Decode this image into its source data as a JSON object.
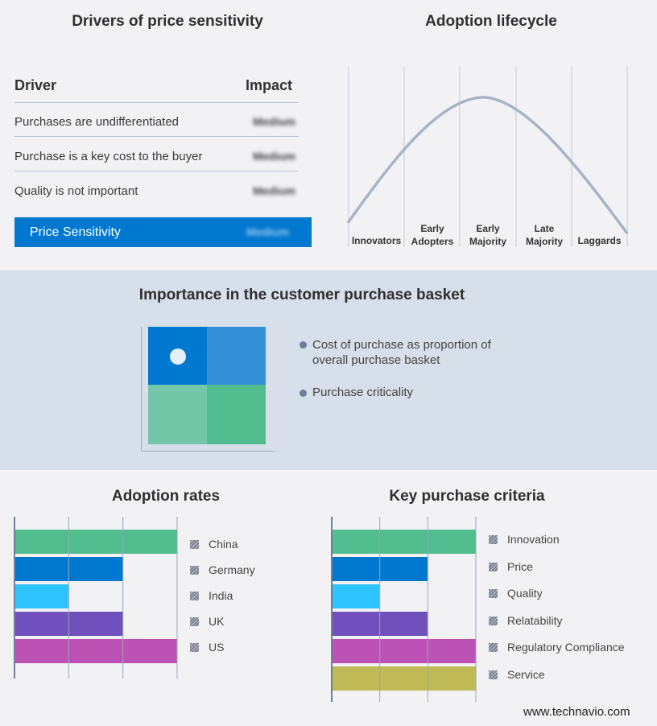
{
  "drivers": {
    "title": "Drivers of price sensitivity",
    "header_driver": "Driver",
    "header_impact": "Impact",
    "rows": [
      {
        "driver": "Purchases are undifferentiated",
        "impact": "Medium"
      },
      {
        "driver": "Purchase is a key cost to the buyer",
        "impact": "Medium"
      },
      {
        "driver": "Quality is not important",
        "impact": "Medium"
      }
    ],
    "summary": {
      "label": "Price Sensitivity",
      "impact": "Medium"
    },
    "accent": "#0078d0"
  },
  "lifecycle": {
    "title": "Adoption lifecycle",
    "stages": [
      "Innovators",
      "Early Adopters",
      "Early Majority",
      "Late Majority",
      "Laggards"
    ]
  },
  "basket": {
    "title": "Importance in the customer purchase basket",
    "legend": [
      "Cost of purchase as proportion of overall purchase basket",
      "Purchase criticality"
    ],
    "colors": [
      "#0078d0",
      "#3490d8",
      "#74c6a8",
      "#52bd8f"
    ]
  },
  "chart_data": [
    {
      "type": "bar",
      "title": "Adoption rates",
      "categories": [
        "China",
        "Germany",
        "India",
        "UK",
        "US"
      ],
      "values": [
        3,
        2,
        1,
        2,
        3
      ],
      "colors": [
        "#52bd8f",
        "#0078d0",
        "#2ec4ff",
        "#6f50bc",
        "#bd52b5"
      ],
      "xlim": [
        0,
        3
      ],
      "grid": true,
      "legend": "right"
    },
    {
      "type": "bar",
      "title": "Key purchase criteria",
      "categories": [
        "Innovation",
        "Price",
        "Quality",
        "Relatability",
        "Regulatory Compliance",
        "Service"
      ],
      "values": [
        3,
        2,
        1,
        2,
        3,
        3
      ],
      "colors": [
        "#52bd8f",
        "#0078d0",
        "#2ec4ff",
        "#6f50bc",
        "#bd52b5",
        "#bfba55"
      ],
      "xlim": [
        0,
        3
      ],
      "grid": true,
      "legend": "right"
    }
  ],
  "footer": {
    "site": "www.technavio.com"
  }
}
